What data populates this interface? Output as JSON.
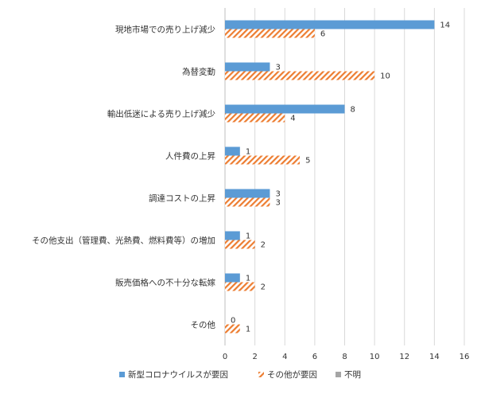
{
  "chart_data": {
    "type": "bar",
    "orientation": "horizontal",
    "title": "",
    "xlabel": "",
    "ylabel": "",
    "categories": [
      "現地市場での売り上げ減少",
      "為替変動",
      "輸出低迷による売り上げ減少",
      "人件費の上昇",
      "調達コストの上昇",
      "その他支出（管理費、光熱費、燃料費等）の増加",
      "販売価格への不十分な転嫁",
      "その他"
    ],
    "series": [
      {
        "name": "新型コロナウイルスが要因",
        "values": [
          14,
          3,
          8,
          1,
          3,
          1,
          1,
          0
        ],
        "color": "#5b9bd5",
        "pattern": "solid"
      },
      {
        "name": "その他が要因",
        "values": [
          6,
          10,
          4,
          5,
          3,
          2,
          2,
          1
        ],
        "color": "#ed7d31",
        "pattern": "diagonal-hatch"
      },
      {
        "name": "不明",
        "values": [
          0,
          0,
          0,
          0,
          0,
          0,
          0,
          0
        ],
        "color": "#a5a5a5",
        "pattern": "solid"
      }
    ],
    "xlim": [
      0,
      16
    ],
    "xticks": [
      0,
      2,
      4,
      6,
      8,
      10,
      12,
      14,
      16
    ],
    "grid": "vertical",
    "legend_position": "bottom"
  }
}
